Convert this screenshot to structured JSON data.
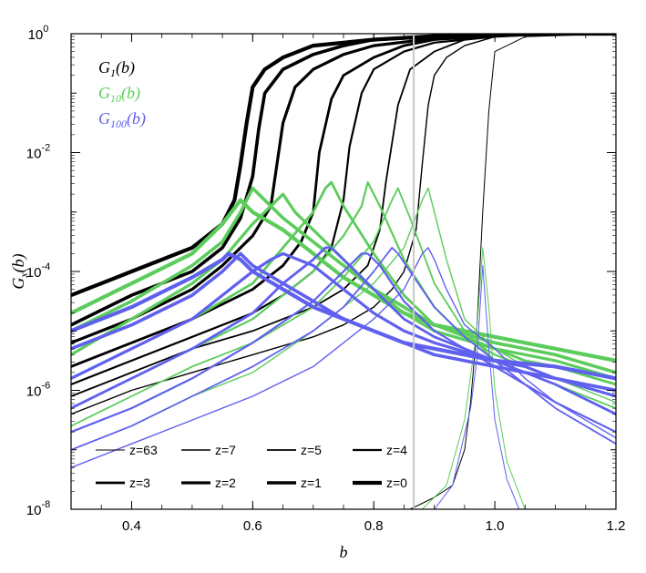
{
  "chart_data": {
    "type": "line",
    "title": "",
    "xlabel": "b",
    "ylabel": {
      "base": "G",
      "sub": "x",
      "arg": "(b)"
    },
    "xlim": [
      0.3,
      1.2
    ],
    "ylim_log10": [
      -8,
      0
    ],
    "y_scale": "log",
    "x_ticks": [
      {
        "v": 0.4,
        "label": "0.4"
      },
      {
        "v": 0.6,
        "label": "0.6"
      },
      {
        "v": 0.8,
        "label": "0.8"
      },
      {
        "v": 1.0,
        "label": "1.0"
      },
      {
        "v": 1.2,
        "label": "1.2"
      }
    ],
    "y_ticks": [
      {
        "e": 0,
        "base": "10",
        "exp": "0"
      },
      {
        "e": -2,
        "base": "10",
        "exp": "-2"
      },
      {
        "e": -4,
        "base": "10",
        "exp": "-4"
      },
      {
        "e": -6,
        "base": "10",
        "exp": "-6"
      },
      {
        "e": -8,
        "base": "10",
        "exp": "-8"
      }
    ],
    "vertical_marker_b": 0.866,
    "series_groups": [
      {
        "key": "G1",
        "label": "G",
        "sub": "1",
        "arg": "(b)",
        "color": "#000000"
      },
      {
        "key": "G10",
        "label": "G",
        "sub": "10",
        "arg": "(b)",
        "color": "#5ccc5c"
      },
      {
        "key": "G100",
        "label": "G",
        "sub": "100",
        "arg": "(b)",
        "color": "#6060ee"
      }
    ],
    "redshifts": [
      {
        "label": "z=63",
        "width": 1.0,
        "G1": {
          "x": [
            0.86,
            0.88,
            0.9,
            0.93,
            0.95,
            0.96,
            0.97,
            0.98,
            0.99,
            1.0,
            1.05,
            1.2
          ],
          "log10": [
            -8,
            -7.9,
            -7.8,
            -7.6,
            -7.0,
            -6.2,
            -5.0,
            -3.0,
            -1.3,
            -0.3,
            -0.05,
            0
          ]
        },
        "G10": {
          "x": [
            0.88,
            0.92,
            0.95,
            0.97,
            0.98,
            0.99,
            1.0,
            1.02,
            1.05
          ],
          "log10": [
            -8,
            -7.6,
            -6.5,
            -5.0,
            -3.6,
            -4.6,
            -6.0,
            -7.2,
            -8
          ]
        },
        "G100": {
          "x": [
            0.9,
            0.93,
            0.96,
            0.97,
            0.98,
            0.99,
            1.0,
            1.02,
            1.04
          ],
          "log10": [
            -8,
            -7.6,
            -6.3,
            -5.5,
            -3.9,
            -5.3,
            -6.5,
            -7.5,
            -8
          ]
        }
      },
      {
        "label": "z=7",
        "width": 1.4,
        "G1": {
          "x": [
            0.3,
            0.4,
            0.5,
            0.6,
            0.7,
            0.75,
            0.8,
            0.83,
            0.85,
            0.87,
            0.88,
            0.89,
            0.9,
            0.92,
            0.95,
            1.0,
            1.05,
            1.2
          ],
          "log10": [
            -6.4,
            -6.0,
            -5.7,
            -5.4,
            -5.1,
            -4.9,
            -4.6,
            -4.3,
            -4.0,
            -3.3,
            -2.2,
            -1.2,
            -0.7,
            -0.4,
            -0.2,
            -0.05,
            0,
            0
          ]
        },
        "G10": {
          "x": [
            0.3,
            0.4,
            0.5,
            0.6,
            0.7,
            0.8,
            0.85,
            0.88,
            0.89,
            0.9,
            0.92,
            0.95,
            1.0,
            1.05,
            1.1,
            1.2
          ],
          "log10": [
            -7.0,
            -6.6,
            -6.1,
            -5.7,
            -5.0,
            -4.2,
            -3.6,
            -2.8,
            -2.6,
            -3.0,
            -3.8,
            -4.8,
            -5.3,
            -5.6,
            -5.8,
            -6.2
          ]
        },
        "G100": {
          "x": [
            0.3,
            0.4,
            0.5,
            0.6,
            0.7,
            0.8,
            0.85,
            0.88,
            0.89,
            0.9,
            0.92,
            0.95,
            1.0,
            1.05,
            1.1,
            1.2
          ],
          "log10": [
            -7.3,
            -6.9,
            -6.5,
            -6.1,
            -5.6,
            -4.8,
            -4.3,
            -3.7,
            -3.6,
            -3.8,
            -4.3,
            -4.9,
            -5.3,
            -5.8,
            -6.2,
            -6.8
          ]
        }
      },
      {
        "label": "z=5",
        "width": 1.8,
        "G1": {
          "x": [
            0.3,
            0.4,
            0.5,
            0.6,
            0.7,
            0.75,
            0.79,
            0.81,
            0.82,
            0.84,
            0.86,
            0.9,
            0.95,
            1.0,
            1.1,
            1.2
          ],
          "log10": [
            -6.1,
            -5.7,
            -5.3,
            -5.0,
            -4.6,
            -4.3,
            -3.9,
            -3.3,
            -2.5,
            -1.2,
            -0.6,
            -0.3,
            -0.1,
            -0.04,
            0,
            0
          ]
        },
        "G10": {
          "x": [
            0.3,
            0.4,
            0.5,
            0.6,
            0.7,
            0.75,
            0.8,
            0.83,
            0.84,
            0.86,
            0.9,
            0.95,
            1.0,
            1.05,
            1.1,
            1.2
          ],
          "log10": [
            -6.6,
            -6.1,
            -5.6,
            -5.2,
            -4.6,
            -4.1,
            -3.5,
            -2.8,
            -2.6,
            -3.1,
            -4.2,
            -5.0,
            -5.5,
            -5.7,
            -5.9,
            -6.3
          ]
        },
        "G100": {
          "x": [
            0.3,
            0.4,
            0.5,
            0.6,
            0.7,
            0.75,
            0.8,
            0.83,
            0.84,
            0.86,
            0.9,
            0.95,
            1.0,
            1.05,
            1.1,
            1.2
          ],
          "log10": [
            -7.0,
            -6.6,
            -6.1,
            -5.6,
            -5.0,
            -4.6,
            -4.0,
            -3.6,
            -3.7,
            -4.0,
            -4.6,
            -5.1,
            -5.5,
            -5.9,
            -6.3,
            -6.9
          ]
        }
      },
      {
        "label": "z=4",
        "width": 2.2,
        "G1": {
          "x": [
            0.3,
            0.4,
            0.5,
            0.6,
            0.65,
            0.7,
            0.73,
            0.75,
            0.76,
            0.78,
            0.8,
            0.85,
            0.9,
            1.0,
            1.1,
            1.2
          ],
          "log10": [
            -5.9,
            -5.5,
            -5.1,
            -4.7,
            -4.4,
            -4.0,
            -3.6,
            -2.8,
            -1.9,
            -1.0,
            -0.6,
            -0.3,
            -0.15,
            -0.05,
            0,
            0
          ]
        },
        "G10": {
          "x": [
            0.3,
            0.4,
            0.5,
            0.6,
            0.7,
            0.75,
            0.78,
            0.79,
            0.81,
            0.85,
            0.9,
            0.95,
            1.0,
            1.05,
            1.1,
            1.2
          ],
          "log10": [
            -6.3,
            -5.8,
            -5.3,
            -4.8,
            -4.0,
            -3.4,
            -2.9,
            -2.5,
            -2.9,
            -3.8,
            -4.6,
            -5.1,
            -5.4,
            -5.6,
            -5.8,
            -6.1
          ]
        },
        "G100": {
          "x": [
            0.3,
            0.4,
            0.5,
            0.6,
            0.7,
            0.75,
            0.78,
            0.79,
            0.81,
            0.85,
            0.9,
            0.95,
            1.0,
            1.05,
            1.1,
            1.2
          ],
          "log10": [
            -6.7,
            -6.3,
            -5.8,
            -5.2,
            -4.5,
            -4.0,
            -3.7,
            -3.7,
            -3.9,
            -4.5,
            -5.0,
            -5.3,
            -5.6,
            -5.9,
            -6.2,
            -6.7
          ]
        }
      },
      {
        "label": "z=3",
        "width": 2.8,
        "G1": {
          "x": [
            0.3,
            0.4,
            0.5,
            0.6,
            0.65,
            0.68,
            0.7,
            0.71,
            0.73,
            0.75,
            0.8,
            0.85,
            0.9,
            1.0,
            1.1,
            1.2
          ],
          "log10": [
            -5.6,
            -5.2,
            -4.8,
            -4.3,
            -3.9,
            -3.5,
            -3.0,
            -2.0,
            -1.1,
            -0.7,
            -0.4,
            -0.2,
            -0.1,
            -0.04,
            0,
            0
          ]
        },
        "G10": {
          "x": [
            0.3,
            0.4,
            0.5,
            0.6,
            0.65,
            0.7,
            0.72,
            0.73,
            0.75,
            0.8,
            0.85,
            0.9,
            1.0,
            1.05,
            1.1,
            1.2
          ],
          "log10": [
            -5.8,
            -5.3,
            -4.8,
            -4.2,
            -3.6,
            -3.0,
            -2.6,
            -2.5,
            -2.9,
            -3.7,
            -4.4,
            -4.9,
            -5.3,
            -5.5,
            -5.6,
            -5.9
          ]
        },
        "G100": {
          "x": [
            0.3,
            0.4,
            0.5,
            0.6,
            0.65,
            0.7,
            0.72,
            0.73,
            0.75,
            0.8,
            0.85,
            0.9,
            1.0,
            1.05,
            1.1,
            1.2
          ],
          "log10": [
            -6.3,
            -5.8,
            -5.3,
            -4.7,
            -4.2,
            -3.8,
            -3.6,
            -3.6,
            -3.8,
            -4.3,
            -4.8,
            -5.1,
            -5.5,
            -5.7,
            -5.9,
            -6.4
          ]
        }
      },
      {
        "label": "z=2",
        "width": 3.2,
        "G1": {
          "x": [
            0.3,
            0.4,
            0.5,
            0.55,
            0.6,
            0.63,
            0.64,
            0.65,
            0.67,
            0.7,
            0.75,
            0.8,
            0.9,
            1.0,
            1.1,
            1.2
          ],
          "log10": [
            -5.2,
            -4.8,
            -4.3,
            -3.9,
            -3.4,
            -2.9,
            -2.2,
            -1.5,
            -0.9,
            -0.6,
            -0.35,
            -0.2,
            -0.08,
            -0.03,
            0,
            0
          ]
        },
        "G10": {
          "x": [
            0.3,
            0.4,
            0.5,
            0.55,
            0.6,
            0.64,
            0.65,
            0.67,
            0.7,
            0.75,
            0.8,
            0.85,
            0.9,
            1.0,
            1.1,
            1.2
          ],
          "log10": [
            -5.4,
            -4.8,
            -4.2,
            -3.8,
            -3.2,
            -2.8,
            -2.7,
            -3.0,
            -3.3,
            -3.8,
            -4.3,
            -4.7,
            -5.0,
            -5.3,
            -5.5,
            -5.8
          ]
        },
        "G100": {
          "x": [
            0.3,
            0.4,
            0.5,
            0.55,
            0.6,
            0.63,
            0.65,
            0.7,
            0.75,
            0.8,
            0.85,
            0.9,
            1.0,
            1.05,
            1.1,
            1.2
          ],
          "log10": [
            -5.8,
            -5.3,
            -4.8,
            -4.4,
            -4.0,
            -3.8,
            -3.7,
            -3.9,
            -4.3,
            -4.7,
            -5.0,
            -5.2,
            -5.5,
            -5.6,
            -5.8,
            -6.1
          ]
        }
      },
      {
        "label": "z=1",
        "width": 3.6,
        "G1": {
          "x": [
            0.3,
            0.4,
            0.5,
            0.55,
            0.58,
            0.6,
            0.61,
            0.62,
            0.65,
            0.7,
            0.75,
            0.8,
            0.9,
            1.0,
            1.1,
            1.2
          ],
          "log10": [
            -4.9,
            -4.4,
            -4.0,
            -3.6,
            -3.1,
            -2.4,
            -1.6,
            -1.0,
            -0.6,
            -0.35,
            -0.2,
            -0.1,
            -0.05,
            -0.02,
            0,
            0
          ]
        },
        "G10": {
          "x": [
            0.3,
            0.4,
            0.5,
            0.55,
            0.58,
            0.6,
            0.62,
            0.65,
            0.7,
            0.75,
            0.8,
            0.85,
            0.9,
            1.0,
            1.1,
            1.2
          ],
          "log10": [
            -5.0,
            -4.5,
            -3.9,
            -3.5,
            -3.0,
            -2.6,
            -2.8,
            -3.1,
            -3.5,
            -3.9,
            -4.3,
            -4.6,
            -4.9,
            -5.2,
            -5.4,
            -5.7
          ]
        },
        "G100": {
          "x": [
            0.3,
            0.4,
            0.5,
            0.55,
            0.57,
            0.58,
            0.6,
            0.65,
            0.7,
            0.75,
            0.8,
            0.85,
            0.9,
            1.0,
            1.1,
            1.2
          ],
          "log10": [
            -5.3,
            -4.9,
            -4.4,
            -4.0,
            -3.8,
            -3.7,
            -3.9,
            -4.2,
            -4.5,
            -4.8,
            -5.0,
            -5.2,
            -5.4,
            -5.6,
            -5.8,
            -6.0
          ]
        }
      },
      {
        "label": "z=0",
        "width": 4.2,
        "G1": {
          "x": [
            0.3,
            0.4,
            0.5,
            0.55,
            0.57,
            0.58,
            0.59,
            0.6,
            0.62,
            0.65,
            0.7,
            0.8,
            0.9,
            1.0,
            1.1,
            1.2
          ],
          "log10": [
            -4.4,
            -4.0,
            -3.6,
            -3.2,
            -2.8,
            -2.2,
            -1.5,
            -0.9,
            -0.6,
            -0.4,
            -0.2,
            -0.1,
            -0.04,
            -0.02,
            0,
            0
          ]
        },
        "G10": {
          "x": [
            0.3,
            0.4,
            0.5,
            0.55,
            0.58,
            0.6,
            0.65,
            0.7,
            0.75,
            0.8,
            0.85,
            0.9,
            1.0,
            1.05,
            1.1,
            1.2
          ],
          "log10": [
            -4.7,
            -4.2,
            -3.7,
            -3.2,
            -2.8,
            -3.0,
            -3.3,
            -3.7,
            -4.1,
            -4.4,
            -4.7,
            -4.9,
            -5.1,
            -5.2,
            -5.3,
            -5.5
          ]
        },
        "G100": {
          "x": [
            0.3,
            0.4,
            0.5,
            0.55,
            0.56,
            0.58,
            0.6,
            0.65,
            0.7,
            0.75,
            0.8,
            0.85,
            0.9,
            1.0,
            1.1,
            1.2
          ],
          "log10": [
            -5.0,
            -4.6,
            -4.1,
            -3.8,
            -3.7,
            -3.8,
            -4.0,
            -4.3,
            -4.6,
            -4.8,
            -5.0,
            -5.2,
            -5.3,
            -5.5,
            -5.6,
            -5.8
          ]
        }
      }
    ],
    "legend": {
      "placement": "bottom-left",
      "rows": [
        [
          "z=63",
          "z=7",
          "z=5",
          "z=4"
        ],
        [
          "z=3",
          "z=2",
          "z=1",
          "z=0"
        ]
      ]
    }
  }
}
